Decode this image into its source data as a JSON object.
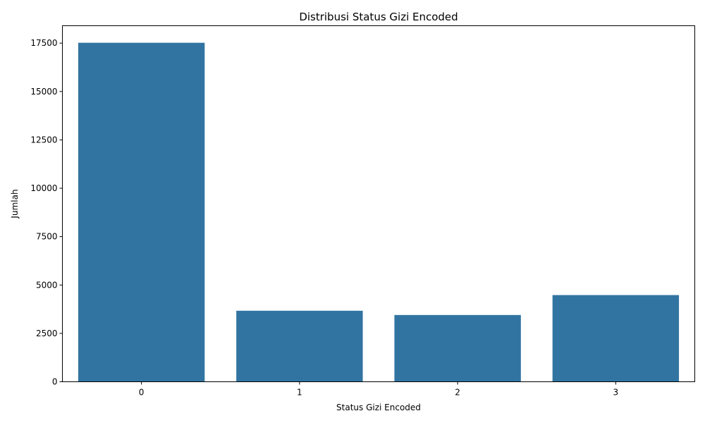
{
  "chart_data": {
    "type": "bar",
    "title": "Distribusi Status Gizi Encoded",
    "xlabel": "Status Gizi Encoded",
    "ylabel": "Jumlah",
    "categories": [
      "0",
      "1",
      "2",
      "3"
    ],
    "values": [
      17520,
      3670,
      3450,
      4480
    ],
    "ylim": [
      0,
      18400
    ],
    "yticks": [
      0,
      2500,
      5000,
      7500,
      10000,
      12500,
      15000,
      17500
    ],
    "bar_color": "#3274a1",
    "grid": false,
    "legend": "none"
  }
}
